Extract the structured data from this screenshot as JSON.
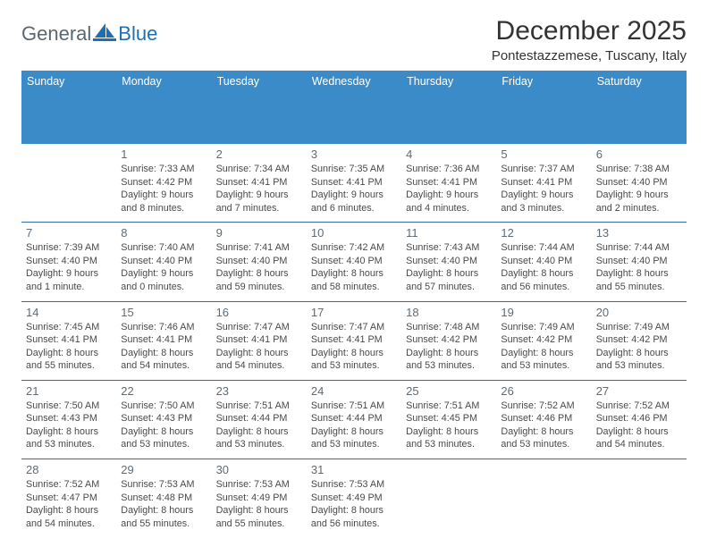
{
  "brand": {
    "part1": "General",
    "part2": "Blue"
  },
  "colors": {
    "header_bg": "#3b8bc9",
    "header_text": "#ffffff",
    "week_border": "#2f6fa8",
    "daynum_color": "#5f6b75",
    "info_color": "#4a4a4a",
    "brand_gray": "#5a6670",
    "brand_blue": "#1f6fb2"
  },
  "title": "December 2025",
  "location": "Pontestazzemese, Tuscany, Italy",
  "day_names": [
    "Sunday",
    "Monday",
    "Tuesday",
    "Wednesday",
    "Thursday",
    "Friday",
    "Saturday"
  ],
  "weeks": [
    [
      {
        "num": "",
        "sunrise": "",
        "sunset": "",
        "daylight": ""
      },
      {
        "num": "1",
        "sunrise": "Sunrise: 7:33 AM",
        "sunset": "Sunset: 4:42 PM",
        "daylight": "Daylight: 9 hours and 8 minutes."
      },
      {
        "num": "2",
        "sunrise": "Sunrise: 7:34 AM",
        "sunset": "Sunset: 4:41 PM",
        "daylight": "Daylight: 9 hours and 7 minutes."
      },
      {
        "num": "3",
        "sunrise": "Sunrise: 7:35 AM",
        "sunset": "Sunset: 4:41 PM",
        "daylight": "Daylight: 9 hours and 6 minutes."
      },
      {
        "num": "4",
        "sunrise": "Sunrise: 7:36 AM",
        "sunset": "Sunset: 4:41 PM",
        "daylight": "Daylight: 9 hours and 4 minutes."
      },
      {
        "num": "5",
        "sunrise": "Sunrise: 7:37 AM",
        "sunset": "Sunset: 4:41 PM",
        "daylight": "Daylight: 9 hours and 3 minutes."
      },
      {
        "num": "6",
        "sunrise": "Sunrise: 7:38 AM",
        "sunset": "Sunset: 4:40 PM",
        "daylight": "Daylight: 9 hours and 2 minutes."
      }
    ],
    [
      {
        "num": "7",
        "sunrise": "Sunrise: 7:39 AM",
        "sunset": "Sunset: 4:40 PM",
        "daylight": "Daylight: 9 hours and 1 minute."
      },
      {
        "num": "8",
        "sunrise": "Sunrise: 7:40 AM",
        "sunset": "Sunset: 4:40 PM",
        "daylight": "Daylight: 9 hours and 0 minutes."
      },
      {
        "num": "9",
        "sunrise": "Sunrise: 7:41 AM",
        "sunset": "Sunset: 4:40 PM",
        "daylight": "Daylight: 8 hours and 59 minutes."
      },
      {
        "num": "10",
        "sunrise": "Sunrise: 7:42 AM",
        "sunset": "Sunset: 4:40 PM",
        "daylight": "Daylight: 8 hours and 58 minutes."
      },
      {
        "num": "11",
        "sunrise": "Sunrise: 7:43 AM",
        "sunset": "Sunset: 4:40 PM",
        "daylight": "Daylight: 8 hours and 57 minutes."
      },
      {
        "num": "12",
        "sunrise": "Sunrise: 7:44 AM",
        "sunset": "Sunset: 4:40 PM",
        "daylight": "Daylight: 8 hours and 56 minutes."
      },
      {
        "num": "13",
        "sunrise": "Sunrise: 7:44 AM",
        "sunset": "Sunset: 4:40 PM",
        "daylight": "Daylight: 8 hours and 55 minutes."
      }
    ],
    [
      {
        "num": "14",
        "sunrise": "Sunrise: 7:45 AM",
        "sunset": "Sunset: 4:41 PM",
        "daylight": "Daylight: 8 hours and 55 minutes."
      },
      {
        "num": "15",
        "sunrise": "Sunrise: 7:46 AM",
        "sunset": "Sunset: 4:41 PM",
        "daylight": "Daylight: 8 hours and 54 minutes."
      },
      {
        "num": "16",
        "sunrise": "Sunrise: 7:47 AM",
        "sunset": "Sunset: 4:41 PM",
        "daylight": "Daylight: 8 hours and 54 minutes."
      },
      {
        "num": "17",
        "sunrise": "Sunrise: 7:47 AM",
        "sunset": "Sunset: 4:41 PM",
        "daylight": "Daylight: 8 hours and 53 minutes."
      },
      {
        "num": "18",
        "sunrise": "Sunrise: 7:48 AM",
        "sunset": "Sunset: 4:42 PM",
        "daylight": "Daylight: 8 hours and 53 minutes."
      },
      {
        "num": "19",
        "sunrise": "Sunrise: 7:49 AM",
        "sunset": "Sunset: 4:42 PM",
        "daylight": "Daylight: 8 hours and 53 minutes."
      },
      {
        "num": "20",
        "sunrise": "Sunrise: 7:49 AM",
        "sunset": "Sunset: 4:42 PM",
        "daylight": "Daylight: 8 hours and 53 minutes."
      }
    ],
    [
      {
        "num": "21",
        "sunrise": "Sunrise: 7:50 AM",
        "sunset": "Sunset: 4:43 PM",
        "daylight": "Daylight: 8 hours and 53 minutes."
      },
      {
        "num": "22",
        "sunrise": "Sunrise: 7:50 AM",
        "sunset": "Sunset: 4:43 PM",
        "daylight": "Daylight: 8 hours and 53 minutes."
      },
      {
        "num": "23",
        "sunrise": "Sunrise: 7:51 AM",
        "sunset": "Sunset: 4:44 PM",
        "daylight": "Daylight: 8 hours and 53 minutes."
      },
      {
        "num": "24",
        "sunrise": "Sunrise: 7:51 AM",
        "sunset": "Sunset: 4:44 PM",
        "daylight": "Daylight: 8 hours and 53 minutes."
      },
      {
        "num": "25",
        "sunrise": "Sunrise: 7:51 AM",
        "sunset": "Sunset: 4:45 PM",
        "daylight": "Daylight: 8 hours and 53 minutes."
      },
      {
        "num": "26",
        "sunrise": "Sunrise: 7:52 AM",
        "sunset": "Sunset: 4:46 PM",
        "daylight": "Daylight: 8 hours and 53 minutes."
      },
      {
        "num": "27",
        "sunrise": "Sunrise: 7:52 AM",
        "sunset": "Sunset: 4:46 PM",
        "daylight": "Daylight: 8 hours and 54 minutes."
      }
    ],
    [
      {
        "num": "28",
        "sunrise": "Sunrise: 7:52 AM",
        "sunset": "Sunset: 4:47 PM",
        "daylight": "Daylight: 8 hours and 54 minutes."
      },
      {
        "num": "29",
        "sunrise": "Sunrise: 7:53 AM",
        "sunset": "Sunset: 4:48 PM",
        "daylight": "Daylight: 8 hours and 55 minutes."
      },
      {
        "num": "30",
        "sunrise": "Sunrise: 7:53 AM",
        "sunset": "Sunset: 4:49 PM",
        "daylight": "Daylight: 8 hours and 55 minutes."
      },
      {
        "num": "31",
        "sunrise": "Sunrise: 7:53 AM",
        "sunset": "Sunset: 4:49 PM",
        "daylight": "Daylight: 8 hours and 56 minutes."
      },
      {
        "num": "",
        "sunrise": "",
        "sunset": "",
        "daylight": ""
      },
      {
        "num": "",
        "sunrise": "",
        "sunset": "",
        "daylight": ""
      },
      {
        "num": "",
        "sunrise": "",
        "sunset": "",
        "daylight": ""
      }
    ]
  ]
}
